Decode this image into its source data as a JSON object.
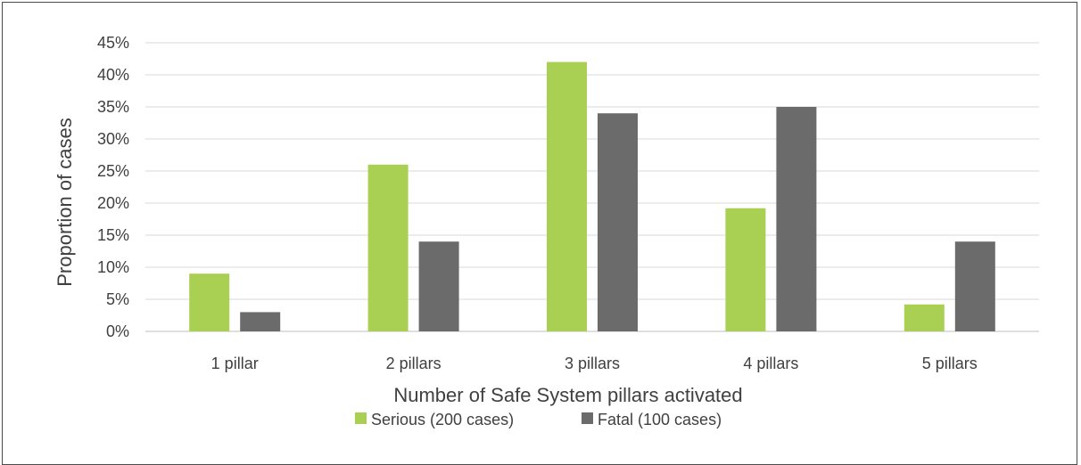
{
  "chart_data": {
    "type": "bar",
    "title": "",
    "xlabel": "Number of Safe System pillars activated",
    "ylabel": "Proportion of cases",
    "categories": [
      "1 pillar",
      "2 pillars",
      "3 pillars",
      "4 pillars",
      "5 pillars"
    ],
    "series": [
      {
        "name": "Serious (200 cases)",
        "color": "#a9d052",
        "values": [
          9,
          26,
          42,
          19.2,
          4.2
        ]
      },
      {
        "name": "Fatal (100 cases)",
        "color": "#6b6b6b",
        "values": [
          3,
          14,
          34,
          35,
          14
        ]
      }
    ],
    "ylim": [
      0,
      45
    ],
    "yticks": [
      0,
      5,
      10,
      15,
      20,
      25,
      30,
      35,
      40,
      45
    ],
    "ytick_labels": [
      "0%",
      "5%",
      "10%",
      "15%",
      "20%",
      "25%",
      "30%",
      "35%",
      "40%",
      "45%"
    ],
    "grid": true,
    "legend_position": "bottom"
  }
}
